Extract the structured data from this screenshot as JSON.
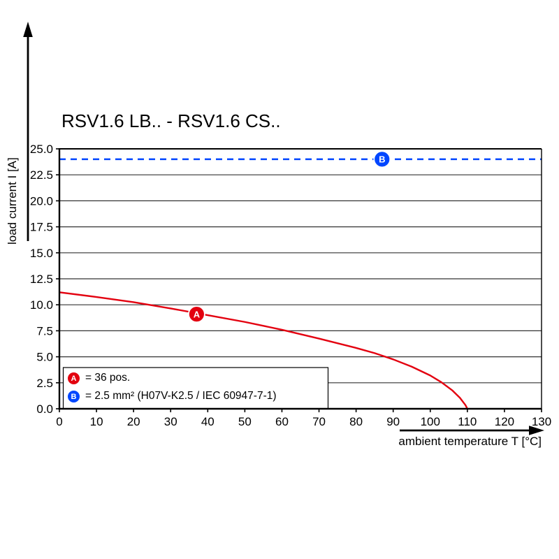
{
  "title": "RSV1.6 LB.. - RSV1.6 CS..",
  "chart_data": {
    "type": "line",
    "title": "RSV1.6 LB.. - RSV1.6 CS..",
    "xlabel": "ambient temperature T [°C]",
    "ylabel": "load current I [A]",
    "xlim": [
      0,
      130
    ],
    "ylim": [
      0,
      25
    ],
    "x_ticks": [
      0,
      10,
      20,
      30,
      40,
      50,
      60,
      70,
      80,
      90,
      100,
      110,
      120,
      130
    ],
    "y_ticks": [
      0,
      2.5,
      5,
      7.5,
      10,
      12.5,
      15,
      17.5,
      20,
      22.5,
      25
    ],
    "y_tick_decimals": 1,
    "grid": "horizontal",
    "legend_position": "bottom-left-inside",
    "series": [
      {
        "name": "A",
        "color": "#e3000f",
        "style": "solid",
        "x": [
          0,
          10,
          20,
          30,
          40,
          50,
          60,
          70,
          80,
          85,
          90,
          95,
          100,
          103,
          106,
          108,
          109.5,
          110
        ],
        "y": [
          11.2,
          10.75,
          10.25,
          9.65,
          9.0,
          8.35,
          7.6,
          6.75,
          5.85,
          5.35,
          4.75,
          4.05,
          3.2,
          2.55,
          1.75,
          1.05,
          0.35,
          0.0
        ],
        "marker": {
          "label": "A",
          "x": 37,
          "y": 9.1
        }
      },
      {
        "name": "B",
        "color": "#0046ff",
        "style": "dashed",
        "x": [
          0,
          130
        ],
        "y": [
          24,
          24
        ],
        "marker": {
          "label": "B",
          "x": 87,
          "y": 24
        }
      }
    ],
    "legend": [
      {
        "label": "A",
        "color": "#e3000f",
        "text": "= 36 pos."
      },
      {
        "label": "B",
        "color": "#0046ff",
        "text": "= 2.5 mm² (H07V-K2.5 / IEC 60947-7-1)"
      }
    ]
  }
}
